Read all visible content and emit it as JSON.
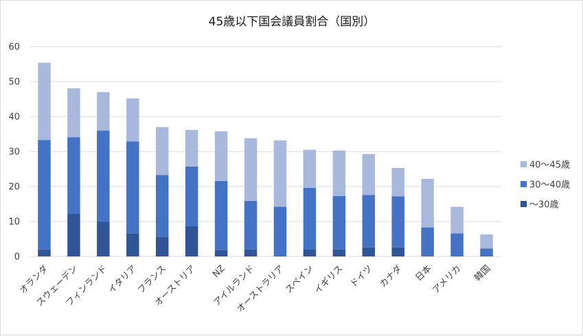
{
  "chart_data": {
    "type": "bar",
    "stacked": true,
    "title": "45歳以下国会議員割合（国別）",
    "categories": [
      "オランダ",
      "スウェーデン",
      "フィンランド",
      "イタリア",
      "フランス",
      "オーストリア",
      "NZ",
      "アイルランド",
      "オーストラリア",
      "スペイン",
      "イギリス",
      "ドイツ",
      "カナダ",
      "日本",
      "アメリカ",
      "韓国"
    ],
    "series": [
      {
        "name": "〜30歳",
        "color": "#2f5597",
        "values": [
          2.0,
          12.3,
          9.9,
          6.6,
          5.5,
          8.7,
          1.8,
          2.0,
          0,
          2.1,
          2.0,
          2.6,
          2.6,
          0,
          0,
          0
        ]
      },
      {
        "name": "30〜40歳",
        "color": "#4472c4",
        "values": [
          31.3,
          21.8,
          26.1,
          26.3,
          17.8,
          17.0,
          19.8,
          13.9,
          14.2,
          17.5,
          15.3,
          15.0,
          14.6,
          8.3,
          6.6,
          2.3
        ]
      },
      {
        "name": "40〜45歳",
        "color": "#a9b9dd",
        "values": [
          22.1,
          14.0,
          11.0,
          12.3,
          13.7,
          10.5,
          14.2,
          17.9,
          19.0,
          10.9,
          13.0,
          11.7,
          8.1,
          13.9,
          7.6,
          4.0
        ]
      }
    ],
    "ylim": [
      0,
      60
    ],
    "yticks": [
      "0",
      "10",
      "20",
      "30",
      "40",
      "50",
      "60"
    ],
    "grid": true,
    "legend_position": "right"
  }
}
